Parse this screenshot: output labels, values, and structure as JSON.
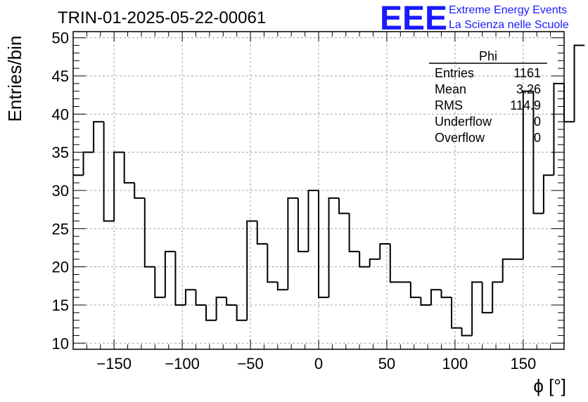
{
  "header": {
    "run_title": "TRIN-01-2025-05-22-00061",
    "brand_logo": "EEE",
    "brand_line1": "Extreme Energy Events",
    "brand_line2": "La Scienza nelle Scuole",
    "brand_color": "#1a1aff"
  },
  "stats": {
    "title": "Phi",
    "rows": [
      {
        "label": "Entries",
        "value": "1161"
      },
      {
        "label": "Mean",
        "value": "3.26"
      },
      {
        "label": "RMS",
        "value": "114.9"
      },
      {
        "label": "Underflow",
        "value": "0"
      },
      {
        "label": "Overflow",
        "value": "0"
      }
    ]
  },
  "chart_data": {
    "type": "histogram",
    "xlabel": "ϕ [°]",
    "ylabel": "Entries/bin",
    "xlim": [
      -180,
      180
    ],
    "ylim": [
      9.2,
      50.8
    ],
    "grid": true,
    "bin_width": 7.5,
    "bin_edges_start": -180,
    "values": [
      32,
      35,
      39,
      26,
      35,
      31,
      29,
      20,
      16,
      22,
      15,
      17,
      15,
      13,
      16,
      15,
      13,
      26,
      23,
      18,
      17,
      29,
      22,
      30,
      16,
      29,
      27,
      22,
      20,
      21,
      23,
      18,
      18,
      16,
      15,
      17,
      16,
      12,
      11,
      18,
      14,
      18,
      21,
      21,
      43,
      27,
      32,
      44,
      39,
      49
    ],
    "xticks": [
      -150,
      -100,
      -50,
      0,
      50,
      100,
      150
    ],
    "xtick_labels": [
      "−150",
      "−100",
      "−50",
      "0",
      "50",
      "100",
      "150"
    ],
    "yticks": [
      10,
      15,
      20,
      25,
      30,
      35,
      40,
      45,
      50
    ],
    "ytick_labels": [
      "10",
      "15",
      "20",
      "25",
      "30",
      "35",
      "40",
      "45",
      "50"
    ],
    "line_color": "#000000",
    "grid_color": "#a0a0a0"
  }
}
